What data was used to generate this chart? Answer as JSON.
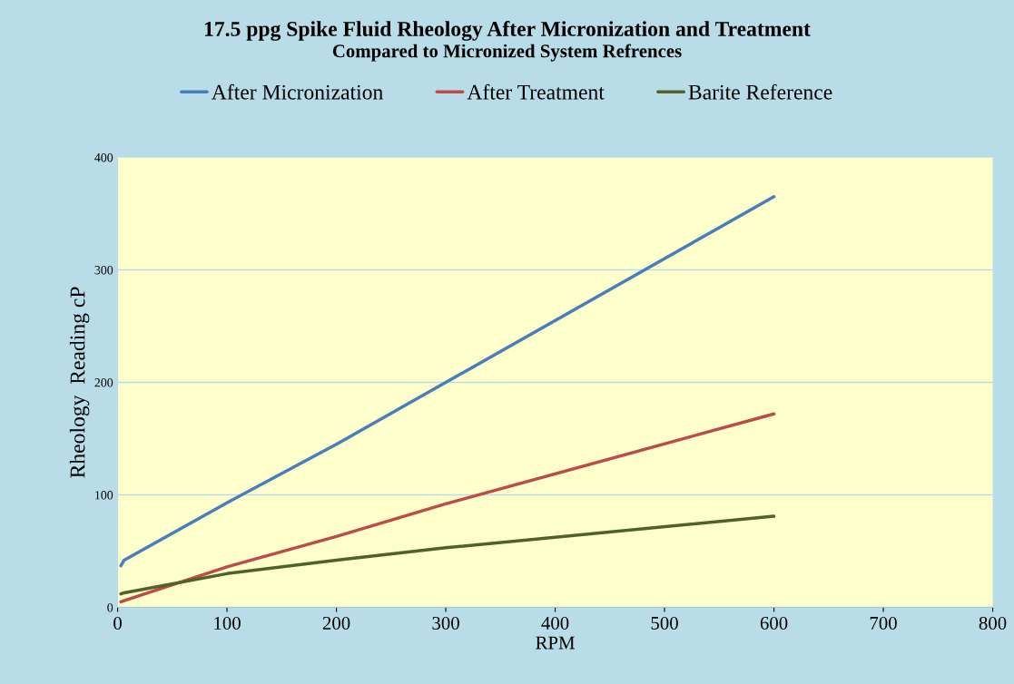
{
  "chart_data": {
    "type": "line",
    "title": "17.5 ppg Spike Fluid Rheology After Micronization and Treatment",
    "subtitle": "Compared to Micronized System Refrences",
    "xlabel": "RPM",
    "ylabel": "Rheology  Reading cP",
    "x": [
      3,
      6,
      100,
      200,
      300,
      600
    ],
    "series": [
      {
        "name": "After Micronization",
        "color": "#4a7ebb",
        "values": [
          37,
          42,
          93,
          145,
          200,
          365
        ]
      },
      {
        "name": "After Treatment",
        "color": "#be4b48",
        "values": [
          5,
          6,
          36,
          63,
          92,
          172
        ]
      },
      {
        "name": "Barite Reference",
        "color": "#4f6228",
        "values": [
          12,
          13,
          30,
          42,
          53,
          81
        ]
      }
    ],
    "xlim": [
      0,
      800
    ],
    "xticks": [
      0,
      100,
      200,
      300,
      400,
      500,
      600,
      700,
      800
    ],
    "ylim": [
      0,
      400
    ],
    "yticks": [
      0,
      100,
      200,
      300,
      400
    ],
    "grid": "y",
    "legend": "top",
    "marker": "none",
    "line_style": "solid"
  }
}
